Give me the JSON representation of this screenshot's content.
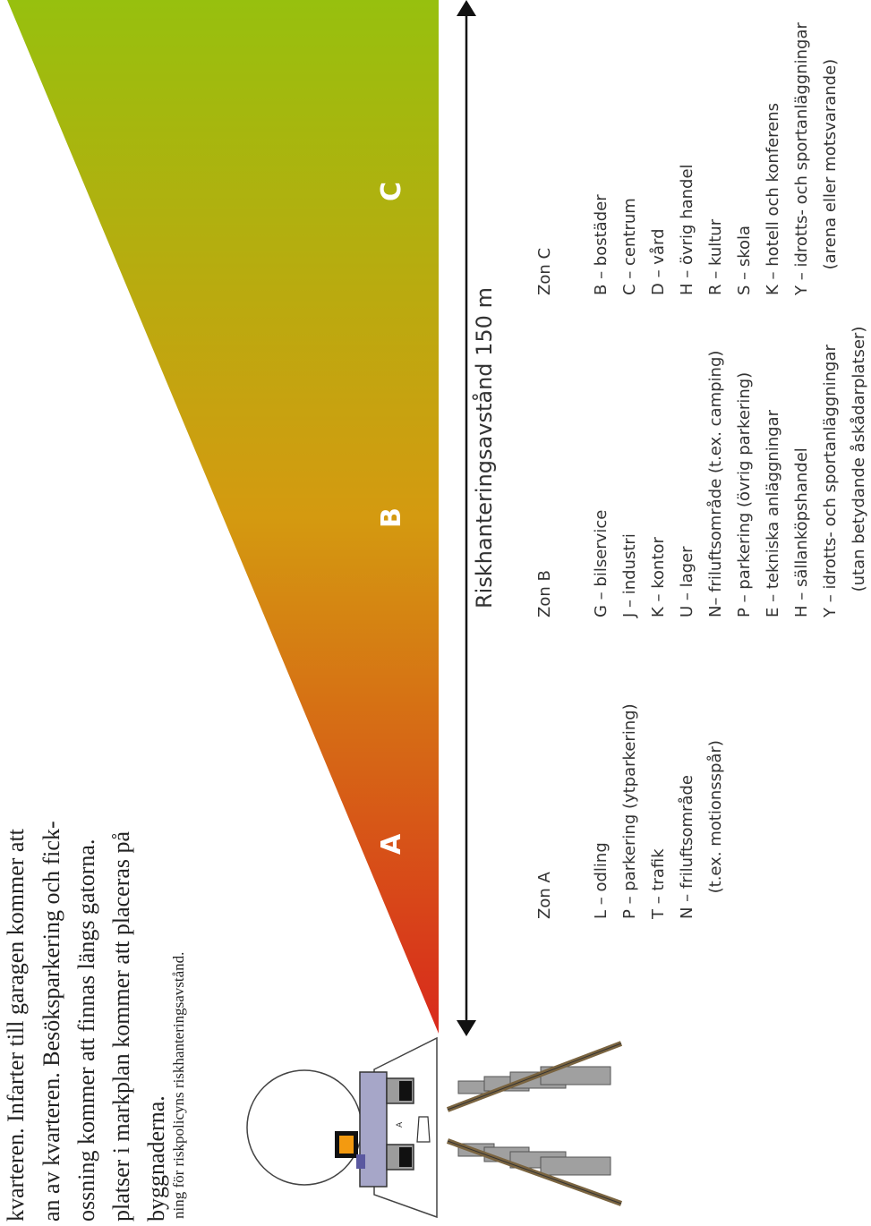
{
  "body_text": [
    "kvarteren. Infarter till garagen kommer att",
    "an av kvarteren. Besöksparkering och fick-",
    "ossning kommer att finnas längs gatorna.",
    "platser i markplan kommer att placeras på",
    "byggnaderna."
  ],
  "zone_letters": [
    "A",
    "B",
    "C"
  ],
  "distance_label": "Riskhanteringsavstånd 150 m",
  "zones": [
    {
      "heading": "Zon A",
      "items": [
        "L – odling",
        "P – parkering (ytparkering)",
        "T – trafik",
        "N – friluftsområde",
        "     (t.ex. motionsspår)"
      ]
    },
    {
      "heading": "Zon B",
      "items": [
        "G – bilservice",
        "J – industri",
        "K – kontor",
        "U – lager",
        "N– friluftsområde (t.ex. camping)",
        "P – parkering (övrig parkering)",
        "E – tekniska anläggningar",
        "H – sällanköpshandel",
        "Y – idrotts- och sportanläggningar",
        "     (utan betydande åskådarplatser)"
      ]
    },
    {
      "heading": "Zon C",
      "items": [
        "B – bostäder",
        "C – centrum",
        "D – vård",
        "H – övrig handel",
        "R – kultur",
        "S – skola",
        "K – hotell och konferens",
        "Y – idrotts- och sportanläggningar",
        "     (arena eller motsvarande)"
      ]
    }
  ],
  "caption": "ning för riskpolicyns riskhanteringsavstånd.",
  "colors": {
    "gradient_start": "#d9291c",
    "gradient_mid": "#d49a10",
    "gradient_end": "#97c00e",
    "rail": "#7a6440",
    "sleeper": "#a0a0a0"
  }
}
